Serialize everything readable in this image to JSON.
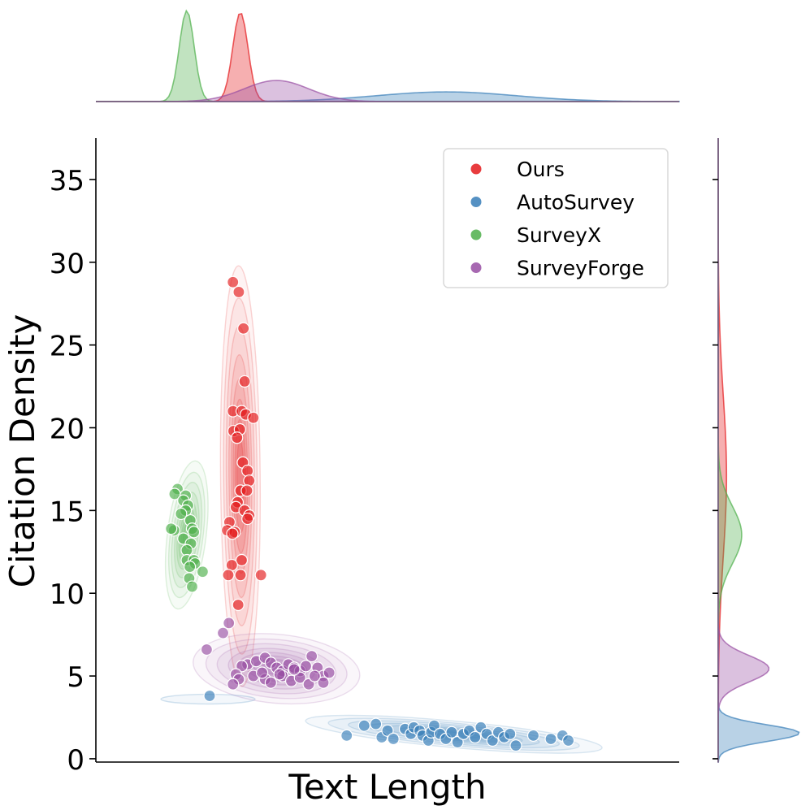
{
  "chart_data": {
    "type": "scatter",
    "subtype": "jointplot with KDE contours and marginal densities",
    "xlabel": "Text Length",
    "ylabel": "Citation Density",
    "x_ticks_shown": false,
    "y_ticks": [
      "0",
      "5",
      "10",
      "15",
      "20",
      "25",
      "30",
      "35"
    ],
    "ylim": [
      -0.2,
      37.5
    ],
    "xlim": [
      0,
      100
    ],
    "grid": false,
    "legend_position": "top-right",
    "series": [
      {
        "name": "Ours",
        "color": "#e41a1c",
        "points": [
          [
            23.5,
            28.8
          ],
          [
            24.5,
            28.2
          ],
          [
            25.3,
            26.0
          ],
          [
            25.5,
            22.8
          ],
          [
            23.5,
            21.0
          ],
          [
            25.0,
            21.0
          ],
          [
            25.7,
            20.8
          ],
          [
            27.0,
            20.6
          ],
          [
            23.6,
            19.8
          ],
          [
            24.7,
            19.9
          ],
          [
            24.2,
            19.4
          ],
          [
            25.2,
            17.9
          ],
          [
            26.0,
            17.4
          ],
          [
            26.3,
            16.8
          ],
          [
            24.8,
            16.2
          ],
          [
            25.9,
            16.2
          ],
          [
            24.3,
            15.5
          ],
          [
            24.0,
            15.2
          ],
          [
            25.5,
            15.0
          ],
          [
            26.3,
            14.7
          ],
          [
            22.9,
            14.3
          ],
          [
            26.0,
            14.5
          ],
          [
            22.5,
            13.8
          ],
          [
            23.8,
            13.7
          ],
          [
            23.4,
            13.6
          ],
          [
            25.0,
            12.0
          ],
          [
            23.3,
            11.7
          ],
          [
            22.7,
            11.1
          ],
          [
            24.8,
            11.1
          ],
          [
            28.3,
            11.1
          ],
          [
            24.4,
            9.3
          ]
        ]
      },
      {
        "name": "AutoSurvey",
        "color": "#377eb8",
        "points": [
          [
            19.5,
            3.8
          ],
          [
            43.0,
            1.4
          ],
          [
            46.0,
            2.0
          ],
          [
            48.0,
            2.1
          ],
          [
            49.0,
            1.3
          ],
          [
            50.0,
            1.7
          ],
          [
            51.0,
            1.2
          ],
          [
            53.0,
            1.8
          ],
          [
            54.0,
            1.5
          ],
          [
            54.5,
            1.9
          ],
          [
            55.5,
            1.7
          ],
          [
            56.0,
            1.4
          ],
          [
            57.0,
            1.1
          ],
          [
            57.5,
            1.6
          ],
          [
            58.0,
            2.0
          ],
          [
            59.0,
            1.5
          ],
          [
            60.0,
            1.2
          ],
          [
            61.0,
            1.6
          ],
          [
            62.0,
            1.0
          ],
          [
            63.0,
            1.5
          ],
          [
            64.0,
            1.7
          ],
          [
            65.0,
            1.3
          ],
          [
            66.0,
            1.9
          ],
          [
            67.0,
            1.5
          ],
          [
            68.0,
            1.1
          ],
          [
            69.0,
            1.6
          ],
          [
            70.0,
            1.3
          ],
          [
            71.0,
            1.5
          ],
          [
            72.0,
            0.8
          ],
          [
            75.0,
            1.4
          ],
          [
            78.0,
            1.2
          ],
          [
            80.0,
            1.4
          ],
          [
            81.0,
            1.1
          ]
        ]
      },
      {
        "name": "SurveyX",
        "color": "#4daf4a",
        "points": [
          [
            14.0,
            16.3
          ],
          [
            13.5,
            16.0
          ],
          [
            15.4,
            15.9
          ],
          [
            15.0,
            15.6
          ],
          [
            15.8,
            15.3
          ],
          [
            15.4,
            15.0
          ],
          [
            14.6,
            14.8
          ],
          [
            16.2,
            14.4
          ],
          [
            16.5,
            13.9
          ],
          [
            16.8,
            13.7
          ],
          [
            13.4,
            13.8
          ],
          [
            12.9,
            13.9
          ],
          [
            15.0,
            13.3
          ],
          [
            16.3,
            13.0
          ],
          [
            15.6,
            12.6
          ],
          [
            15.6,
            12.0
          ],
          [
            16.8,
            12.0
          ],
          [
            17.0,
            11.8
          ],
          [
            16.1,
            11.6
          ],
          [
            18.3,
            11.3
          ],
          [
            16.0,
            10.9
          ],
          [
            16.5,
            10.4
          ]
        ]
      },
      {
        "name": "SurveyForge",
        "color": "#984ea3",
        "points": [
          [
            22.8,
            8.2
          ],
          [
            21.8,
            7.6
          ],
          [
            19.0,
            6.6
          ],
          [
            26.0,
            5.7
          ],
          [
            25.0,
            5.6
          ],
          [
            27.5,
            5.9
          ],
          [
            29.0,
            6.1
          ],
          [
            30.0,
            5.8
          ],
          [
            31.0,
            5.5
          ],
          [
            32.0,
            5.3
          ],
          [
            33.0,
            5.7
          ],
          [
            34.0,
            5.5
          ],
          [
            35.0,
            5.3
          ],
          [
            36.0,
            5.6
          ],
          [
            37.0,
            6.2
          ],
          [
            38.0,
            5.5
          ],
          [
            39.0,
            5.0
          ],
          [
            40.0,
            5.2
          ],
          [
            24.0,
            5.1
          ],
          [
            24.5,
            4.8
          ],
          [
            23.5,
            4.5
          ],
          [
            27.0,
            5.0
          ],
          [
            29.0,
            4.8
          ],
          [
            30.0,
            4.6
          ],
          [
            32.0,
            5.0
          ],
          [
            33.5,
            4.7
          ],
          [
            35.0,
            4.9
          ],
          [
            36.5,
            4.5
          ],
          [
            39.0,
            4.6
          ],
          [
            34.0,
            5.4
          ],
          [
            28.5,
            5.2
          ],
          [
            31.5,
            5.1
          ],
          [
            37.5,
            5.0
          ]
        ]
      }
    ]
  }
}
